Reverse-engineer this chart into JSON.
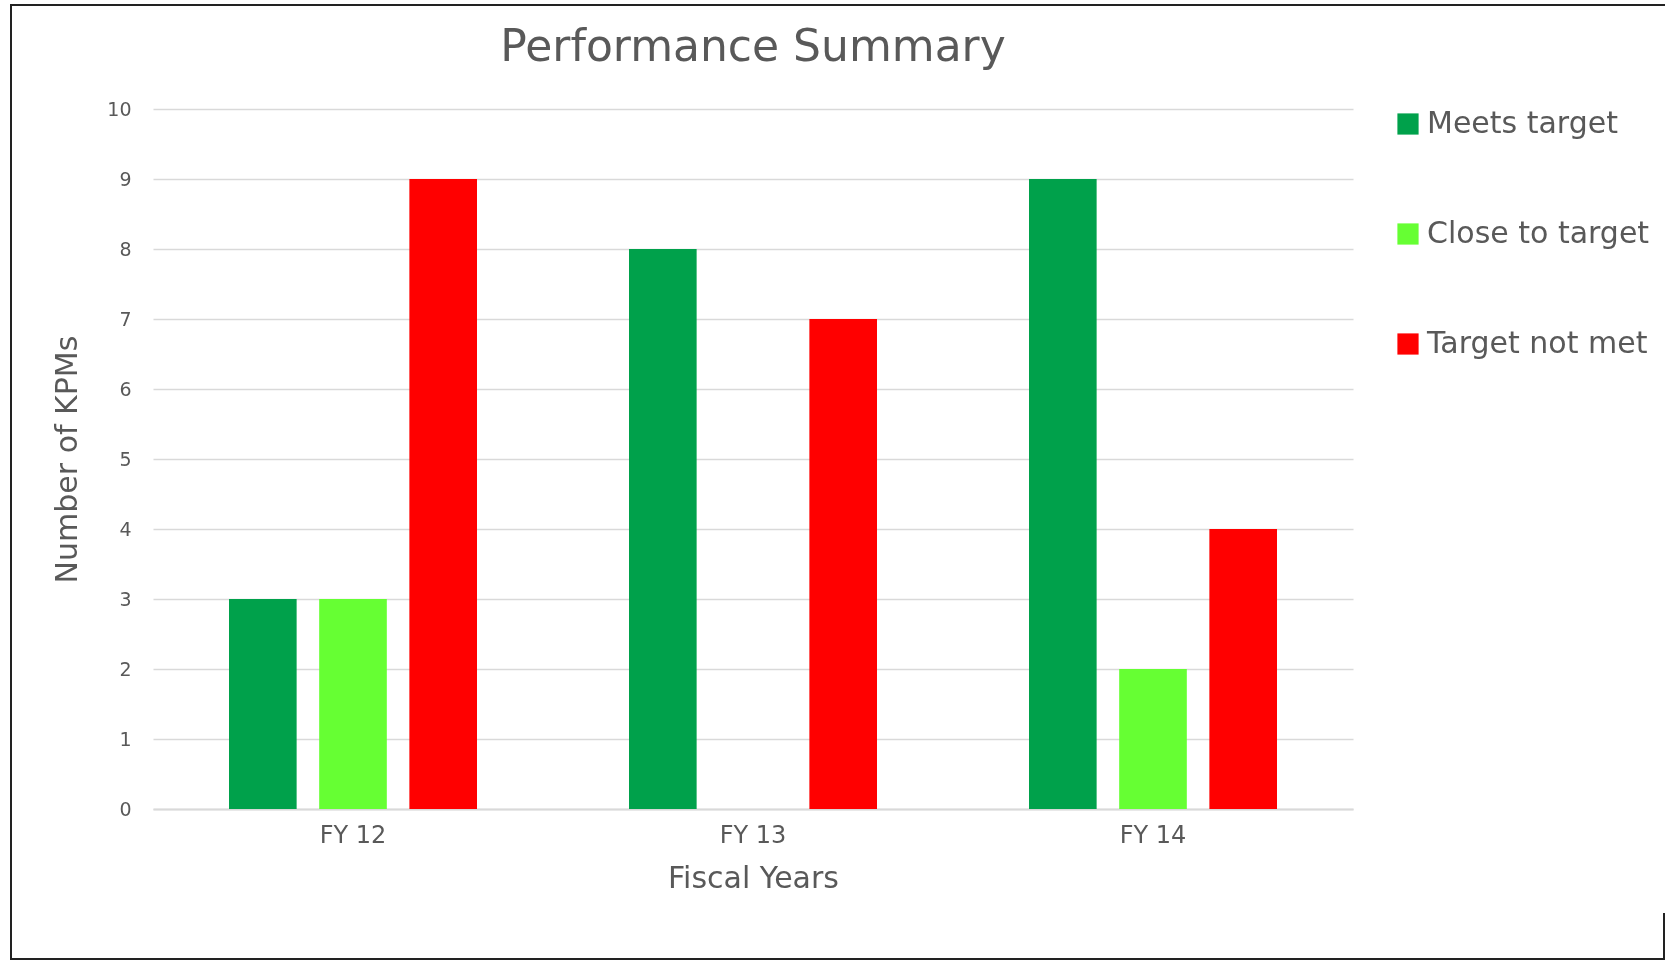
{
  "chart_data": {
    "type": "bar",
    "title": "Performance Summary",
    "xlabel": "Fiscal Years",
    "ylabel": "Number of KPMs",
    "categories": [
      "FY 12",
      "FY 13",
      "FY 14"
    ],
    "series": [
      {
        "name": "Meets target",
        "color": "#00a14b",
        "values": [
          3,
          8,
          9
        ]
      },
      {
        "name": "Close to target",
        "color": "#66ff33",
        "values": [
          3,
          0,
          2
        ]
      },
      {
        "name": "Target not met",
        "color": "#ff0000",
        "values": [
          9,
          7,
          4
        ]
      }
    ],
    "ylim": [
      0,
      10
    ],
    "yticks": [
      0,
      1,
      2,
      3,
      4,
      5,
      6,
      7,
      8,
      9,
      10
    ],
    "grid": "y",
    "legend": "right"
  }
}
